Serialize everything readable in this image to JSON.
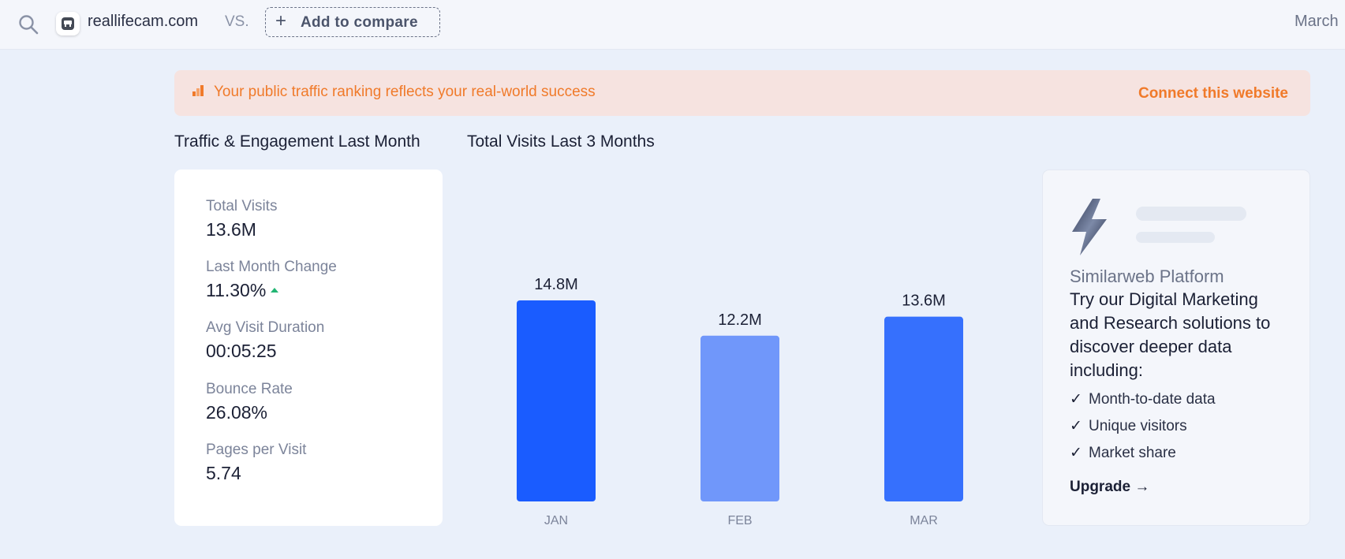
{
  "topbar": {
    "site_name": "reallifecam.com",
    "vs_label": "VS.",
    "compare_label": "Add to compare",
    "date_label": "March"
  },
  "banner": {
    "text": "Your public traffic ranking reflects your real-world success",
    "link": "Connect this website"
  },
  "sections": {
    "traffic_title": "Traffic & Engagement Last Month",
    "visits_title": "Total Visits Last 3 Months"
  },
  "metrics": [
    {
      "label": "Total Visits",
      "value": "13.6M"
    },
    {
      "label": "Last Month Change",
      "value": "11.30%"
    },
    {
      "label": "Avg Visit Duration",
      "value": "00:05:25"
    },
    {
      "label": "Bounce Rate",
      "value": "26.08%"
    },
    {
      "label": "Pages per Visit",
      "value": "5.74"
    }
  ],
  "chart_data": {
    "type": "bar",
    "title": "Total Visits Last 3 Months",
    "categories": [
      "JAN",
      "FEB",
      "MAR"
    ],
    "values": [
      14.8,
      12.2,
      13.6
    ],
    "data_labels": [
      "14.8M",
      "12.2M",
      "13.6M"
    ],
    "bar_colors": [
      "#1a5cff",
      "#7097fa",
      "#3670fd"
    ],
    "ylim": [
      0,
      17
    ],
    "grid": false,
    "legend": "none"
  },
  "promo": {
    "eyebrow": "Similarweb Platform",
    "heading": "Try our Digital Marketing and Research solutions to discover deeper data including:",
    "features": [
      "Month-to-date data",
      "Unique visitors",
      "Market share"
    ],
    "cta": "Upgrade →"
  },
  "colors": {
    "accent_orange": "#f07a2a",
    "positive_green": "#22b573"
  },
  "icons": {
    "search": "search-icon",
    "favicon": "site-favicon-icon",
    "banner": "bar-chart-icon",
    "bolt": "lightning-bolt-icon",
    "check": "check-icon"
  }
}
